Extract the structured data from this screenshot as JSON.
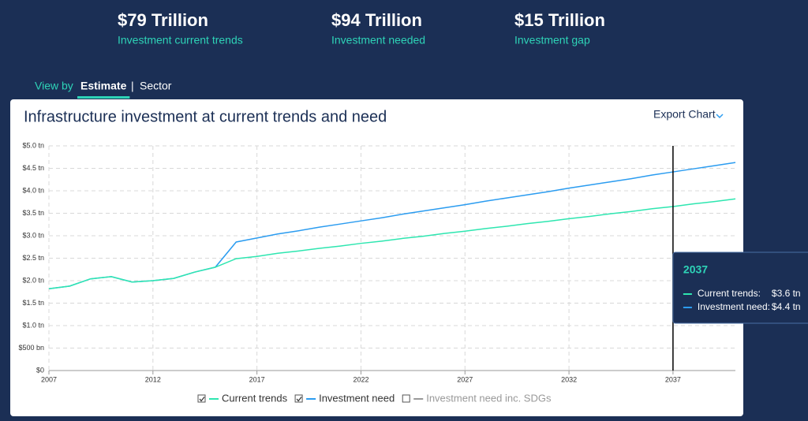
{
  "stats": [
    {
      "value": "$79 Trillion",
      "label": "Investment current trends"
    },
    {
      "value": "$94 Trillion",
      "label": "Investment needed"
    },
    {
      "value": "$15 Trillion",
      "label": "Investment gap"
    }
  ],
  "view_by": {
    "label": "View by",
    "tabs": [
      "Estimate",
      "Sector"
    ],
    "active": 0
  },
  "export_label": "Export Chart",
  "chart_data": {
    "type": "line",
    "title": "Infrastructure investment at current trends and need",
    "x": [
      2007,
      2008,
      2009,
      2010,
      2011,
      2012,
      2013,
      2014,
      2015,
      2016,
      2017,
      2018,
      2019,
      2020,
      2021,
      2022,
      2023,
      2024,
      2025,
      2026,
      2027,
      2028,
      2029,
      2030,
      2031,
      2032,
      2033,
      2034,
      2035,
      2036,
      2037,
      2038,
      2039,
      2040
    ],
    "series": [
      {
        "name": "Current trends",
        "color": "#2ee6b0",
        "values": [
          1.82,
          1.88,
          2.04,
          2.09,
          1.97,
          2.0,
          2.05,
          2.19,
          2.3,
          2.49,
          2.54,
          2.61,
          2.66,
          2.72,
          2.77,
          2.83,
          2.88,
          2.94,
          2.99,
          3.05,
          3.1,
          3.16,
          3.21,
          3.27,
          3.32,
          3.38,
          3.43,
          3.49,
          3.54,
          3.6,
          3.65,
          3.71,
          3.76,
          3.82
        ]
      },
      {
        "name": "Investment need",
        "color": "#2b9cf0",
        "values": [
          1.82,
          1.88,
          2.04,
          2.09,
          1.97,
          2.0,
          2.05,
          2.19,
          2.3,
          2.86,
          2.95,
          3.04,
          3.11,
          3.19,
          3.26,
          3.33,
          3.4,
          3.48,
          3.55,
          3.62,
          3.69,
          3.77,
          3.84,
          3.91,
          3.98,
          4.06,
          4.13,
          4.2,
          4.27,
          4.35,
          4.42,
          4.49,
          4.56,
          4.63
        ]
      }
    ],
    "hidden_series": [
      {
        "name": "Investment need inc. SDGs",
        "color": "#999999"
      }
    ],
    "xlim": [
      2007,
      2040
    ],
    "xticks": [
      2007,
      2012,
      2017,
      2022,
      2027,
      2032,
      2037
    ],
    "ylim": [
      0,
      5
    ],
    "yticks": [
      {
        "value": 0,
        "label": "$0"
      },
      {
        "value": 0.5,
        "label": "$500 bn"
      },
      {
        "value": 1,
        "label": "$1.0 tn"
      },
      {
        "value": 1.5,
        "label": "$1.5 tn"
      },
      {
        "value": 2,
        "label": "$2.0 tn"
      },
      {
        "value": 2.5,
        "label": "$2.5 tn"
      },
      {
        "value": 3,
        "label": "$3.0 tn"
      },
      {
        "value": 3.5,
        "label": "$3.5 tn"
      },
      {
        "value": 4,
        "label": "$4.0 tn"
      },
      {
        "value": 4.5,
        "label": "$4.5 tn"
      },
      {
        "value": 5,
        "label": "$5.0 tn"
      }
    ],
    "grid": true,
    "tooltip": {
      "x": 2037,
      "rows": [
        {
          "label": "Current trends:",
          "value": "$3.6 tn"
        },
        {
          "label": "Investment need:",
          "value": "$4.4 tn"
        }
      ]
    }
  }
}
